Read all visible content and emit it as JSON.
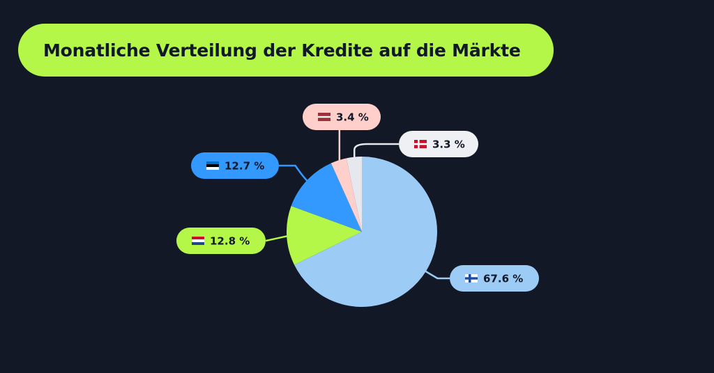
{
  "title": "Monatliche Verteilung der Kredite auf die Märkte",
  "chart_data": {
    "type": "pie",
    "slices": [
      {
        "value": 67.6,
        "label": "67.6 %",
        "flag": "finland-flag-icon",
        "color": "#9ccbf5",
        "label_bg": "#9ccbf5"
      },
      {
        "value": 12.8,
        "label": "12.8 %",
        "flag": "netherlands-flag-icon",
        "color": "#b4f748",
        "label_bg": "#b4f748"
      },
      {
        "value": 12.7,
        "label": "12.7 %",
        "flag": "estonia-flag-icon",
        "color": "#3399ff",
        "label_bg": "#3399ff"
      },
      {
        "value": 3.4,
        "label": "3.4 %",
        "flag": "latvia-flag-icon",
        "color": "#ffcfcc",
        "label_bg": "#ffcfcc"
      },
      {
        "value": 3.3,
        "label": "3.3 %",
        "flag": "denmark-flag-icon",
        "color": "#e6e8ed",
        "label_bg": "#eef0f3"
      }
    ]
  }
}
